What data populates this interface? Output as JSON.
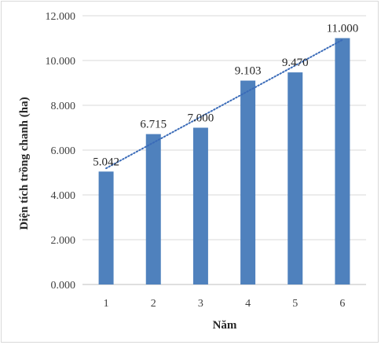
{
  "chart_data": {
    "type": "bar",
    "categories": [
      "1",
      "2",
      "3",
      "4",
      "5",
      "6"
    ],
    "values": [
      5.042,
      6.715,
      7.0,
      9.103,
      9.47,
      11.0
    ],
    "value_labels": [
      "5.042",
      "6.715",
      "7.000",
      "9.103",
      "9.470",
      "11.000"
    ],
    "y_tick_values": [
      0,
      2,
      4,
      6,
      8,
      10,
      12
    ],
    "y_tick_labels": [
      "0.000",
      "2.000",
      "4.000",
      "6.000",
      "8.000",
      "10.000",
      "12.000"
    ],
    "title": "",
    "xlabel": "Năm",
    "ylabel": "Diện tích trồng chanh (ha)",
    "ylim": [
      0,
      12
    ],
    "grid": true,
    "trendline": "linear",
    "colors": {
      "bar": "#4f81bd",
      "trendline": "#3a6bb8",
      "grid": "#d9d9d9"
    }
  }
}
